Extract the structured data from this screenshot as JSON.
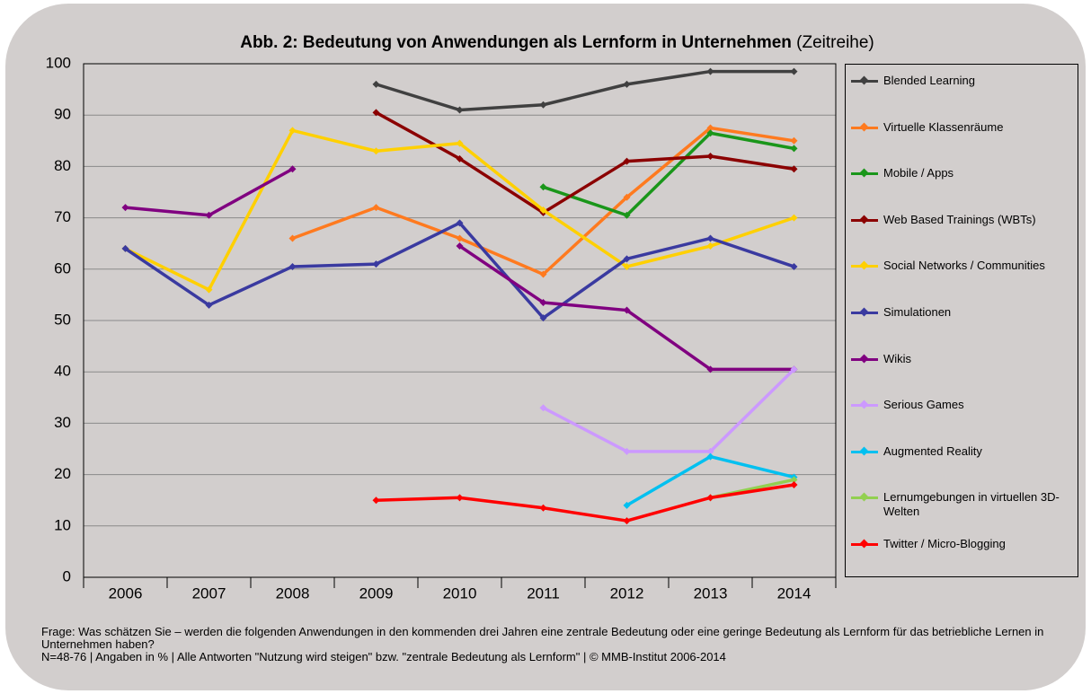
{
  "chart_data": {
    "type": "line",
    "title": "Abb. 2: Bedeutung von Anwendungen als Lernform in Unternehmen",
    "subtitle": "(Zeitreihe)",
    "categories": [
      "2006",
      "2007",
      "2008",
      "2009",
      "2010",
      "2011",
      "2012",
      "2013",
      "2014"
    ],
    "ylim": [
      0,
      100
    ],
    "yticks": [
      0,
      10,
      20,
      30,
      40,
      50,
      60,
      70,
      80,
      90,
      100
    ],
    "grid": true,
    "legend": "right",
    "series": [
      {
        "name": "Blended Learning",
        "color": "#404040",
        "values": [
          null,
          null,
          null,
          96,
          91,
          92,
          96,
          98.5,
          98.5
        ]
      },
      {
        "name": "Virtuelle Klassenräume",
        "color": "#ff7a1f",
        "values": [
          null,
          null,
          66,
          72,
          66,
          59,
          74,
          87.5,
          85
        ]
      },
      {
        "name": "Mobile / Apps",
        "color": "#1a961a",
        "values": [
          null,
          null,
          null,
          null,
          null,
          76,
          70.5,
          86.5,
          83.5
        ]
      },
      {
        "name": "Web Based Trainings (WBTs)",
        "color": "#8b0000",
        "values": [
          null,
          null,
          null,
          90.5,
          81.5,
          71,
          81,
          82,
          79.5
        ]
      },
      {
        "name": "Social Networks / Communities",
        "color": "#ffd000",
        "values": [
          64,
          56,
          87,
          83,
          84.5,
          71.5,
          60.5,
          64.5,
          70
        ]
      },
      {
        "name": "Simulationen",
        "color": "#3a3aa0",
        "values": [
          64,
          53,
          60.5,
          61,
          69,
          50.5,
          62,
          66,
          60.5
        ]
      },
      {
        "name": "Wikis",
        "color": "#800080",
        "values": [
          72,
          70.5,
          79.5,
          null,
          64.5,
          53.5,
          52,
          40.5,
          40.5
        ]
      },
      {
        "name": "Serious Games",
        "color": "#cc99ff",
        "values": [
          null,
          null,
          null,
          null,
          null,
          33,
          24.5,
          24.5,
          40.5
        ]
      },
      {
        "name": "Augmented Reality",
        "color": "#00c0f0",
        "values": [
          null,
          null,
          null,
          null,
          null,
          null,
          14,
          23.5,
          19.5
        ]
      },
      {
        "name": "Lernumgebungen in virtuellen 3D-Welten",
        "color": "#92d050",
        "values": [
          null,
          null,
          null,
          null,
          null,
          null,
          null,
          15.5,
          19
        ]
      },
      {
        "name": "Twitter / Micro-Blogging",
        "color": "#ff0000",
        "values": [
          null,
          null,
          null,
          15,
          15.5,
          13.5,
          11,
          15.5,
          18
        ]
      }
    ]
  },
  "footer": {
    "question": "Frage: Was schätzen Sie – werden die folgenden Anwendungen in den kommenden drei Jahren eine zentrale Bedeutung oder eine geringe Bedeutung als Lernform für das betriebliche Lernen in Unternehmen haben?",
    "note": "N=48-76 | Angaben in % | Alle Antworten \"Nutzung wird steigen\" bzw. \"zentrale Bedeutung als Lernform\" | © MMB-Institut 2006-2014"
  }
}
